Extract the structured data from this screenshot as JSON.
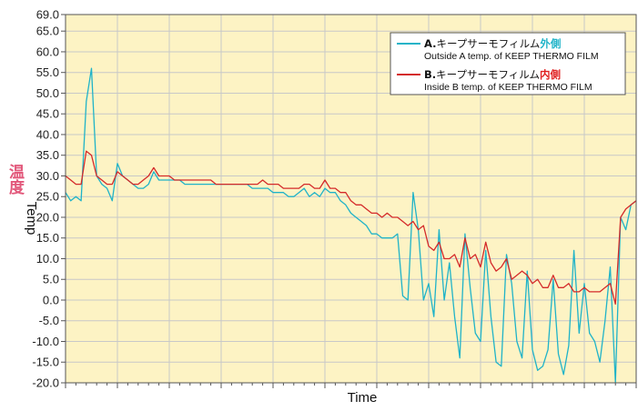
{
  "chart_data": {
    "type": "line",
    "xlabel": "Time",
    "ylabel": "Temp",
    "ylabel_jp": "温度",
    "ylim": [
      -20,
      69
    ],
    "y_ticks": [
      69.0,
      65.0,
      60.0,
      55.0,
      50.0,
      45.0,
      40.0,
      35.0,
      30.0,
      25.0,
      20.0,
      15.0,
      10.0,
      5.0,
      0.0,
      -5.0,
      -10.0,
      -15.0,
      -20.0
    ],
    "y_tick_labels": [
      "69.0",
      "65.0",
      "60.0",
      "55.0",
      "50.0",
      "45.0",
      "40.0",
      "35.0",
      "30.0",
      "25.0",
      "20.0",
      "15.0",
      "10.0",
      "5.0",
      "0.0",
      "-5.0",
      "-10.0",
      "-15.0",
      "-20.0"
    ],
    "xlim": [
      0,
      110
    ],
    "x_major_ticks": [
      10,
      20,
      30,
      40,
      50,
      60,
      70,
      80,
      90,
      100
    ],
    "grid": true,
    "background_color": "#fdf3c4",
    "grid_color": "#c8c8c8",
    "legend_position": "top-right",
    "series": [
      {
        "key": "outside",
        "name_prefix": "A.",
        "name_main": "キープサーモフィルム",
        "name_emph": "外側",
        "name_sub": "Outside A temp. of KEEP THERMO FILM",
        "color": "#1fb3c8",
        "emph_color": "#1fb3c8",
        "x": [
          0,
          1,
          2,
          3,
          4,
          5,
          6,
          7,
          8,
          9,
          10,
          11,
          12,
          13,
          14,
          15,
          16,
          17,
          18,
          19,
          20,
          21,
          22,
          23,
          24,
          25,
          26,
          27,
          28,
          29,
          30,
          31,
          32,
          33,
          34,
          35,
          36,
          37,
          38,
          39,
          40,
          41,
          42,
          43,
          44,
          45,
          46,
          47,
          48,
          49,
          50,
          51,
          52,
          53,
          54,
          55,
          56,
          57,
          58,
          59,
          60,
          61,
          62,
          63,
          64,
          65,
          66,
          67,
          68,
          69,
          70,
          71,
          72,
          73,
          74,
          75,
          76,
          77,
          78,
          79,
          80,
          81,
          82,
          83,
          84,
          85,
          86,
          87,
          88,
          89,
          90,
          91,
          92,
          93,
          94,
          95,
          96,
          97,
          98,
          99,
          100,
          101,
          102,
          103,
          104,
          105,
          106,
          107,
          108,
          109,
          110
        ],
        "values": [
          26,
          24,
          25,
          24,
          48,
          56,
          30,
          28,
          27,
          24,
          33,
          30,
          29,
          28,
          27,
          27,
          28,
          31,
          29,
          29,
          29,
          29,
          29,
          28,
          28,
          28,
          28,
          28,
          28,
          28,
          28,
          28,
          28,
          28,
          28,
          28,
          27,
          27,
          27,
          27,
          26,
          26,
          26,
          25,
          25,
          26,
          27,
          25,
          26,
          25,
          27,
          26,
          26,
          24,
          23,
          21,
          20,
          19,
          18,
          16,
          16,
          15,
          15,
          15,
          16,
          1,
          0,
          26,
          17,
          0,
          4,
          -4,
          17,
          0,
          9,
          -4,
          -14,
          16,
          3,
          -8,
          -10,
          12,
          -4,
          -15,
          -16,
          11,
          4,
          -10,
          -14,
          7,
          -12,
          -17,
          -16,
          -12,
          5,
          -13,
          -18,
          -11,
          12,
          -8,
          4,
          -8,
          -10,
          -15,
          -5,
          8,
          -20,
          20,
          17,
          23,
          24
        ],
        "values_note": ""
      },
      {
        "key": "inside",
        "name_prefix": "B.",
        "name_main": "キープサーモフィルム",
        "name_emph": "内側",
        "name_sub": "Inside B temp. of KEEP THERMO FILM",
        "color": "#d42a2a",
        "emph_color": "#e02020",
        "x": [
          0,
          1,
          2,
          3,
          4,
          5,
          6,
          7,
          8,
          9,
          10,
          11,
          12,
          13,
          14,
          15,
          16,
          17,
          18,
          19,
          20,
          21,
          22,
          23,
          24,
          25,
          26,
          27,
          28,
          29,
          30,
          31,
          32,
          33,
          34,
          35,
          36,
          37,
          38,
          39,
          40,
          41,
          42,
          43,
          44,
          45,
          46,
          47,
          48,
          49,
          50,
          51,
          52,
          53,
          54,
          55,
          56,
          57,
          58,
          59,
          60,
          61,
          62,
          63,
          64,
          65,
          66,
          67,
          68,
          69,
          70,
          71,
          72,
          73,
          74,
          75,
          76,
          77,
          78,
          79,
          80,
          81,
          82,
          83,
          84,
          85,
          86,
          87,
          88,
          89,
          90,
          91,
          92,
          93,
          94,
          95,
          96,
          97,
          98,
          99,
          100,
          101,
          102,
          103,
          104,
          105,
          106,
          107,
          108,
          109,
          110
        ],
        "values": [
          30,
          29,
          28,
          28,
          36,
          35,
          30,
          29,
          28,
          28,
          31,
          30,
          29,
          28,
          28,
          29,
          30,
          32,
          30,
          30,
          30,
          29,
          29,
          29,
          29,
          29,
          29,
          29,
          29,
          28,
          28,
          28,
          28,
          28,
          28,
          28,
          28,
          28,
          29,
          28,
          28,
          28,
          27,
          27,
          27,
          27,
          28,
          28,
          27,
          27,
          29,
          27,
          27,
          26,
          26,
          24,
          23,
          23,
          22,
          21,
          21,
          20,
          21,
          20,
          20,
          19,
          18,
          19,
          17,
          18,
          13,
          12,
          14,
          10,
          10,
          11,
          8,
          15,
          10,
          11,
          8,
          14,
          9,
          7,
          8,
          10,
          5,
          6,
          7,
          6,
          4,
          5,
          3,
          3,
          6,
          3,
          3,
          4,
          2,
          2,
          3,
          2,
          2,
          2,
          3,
          4,
          -1,
          20,
          22,
          23,
          24
        ],
        "values_note": ""
      }
    ]
  }
}
